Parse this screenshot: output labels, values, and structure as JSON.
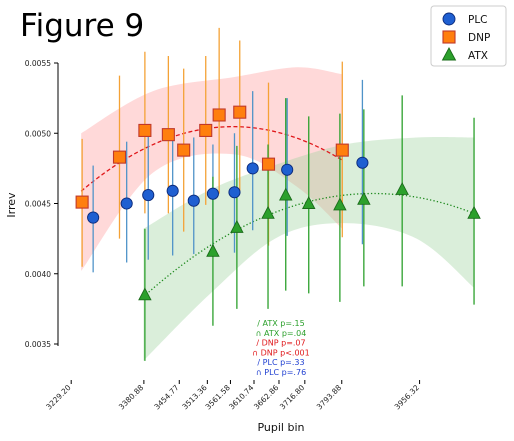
{
  "figure_title": "Figure 9",
  "chart_data": {
    "type": "scatter",
    "title": "",
    "xlabel": "Pupil bin",
    "ylabel": "Irrev",
    "x_tick_labels": [
      "3229.20",
      "3380.88",
      "3454.77",
      "3513.36",
      "3561.58",
      "3610.74",
      "3662.86",
      "3716.80",
      "3793.88",
      "3956.32"
    ],
    "y_ticks": [
      "0.0035",
      "0.0040",
      "0.0045",
      "0.0050",
      "0.0055"
    ],
    "ylim": [
      0.00345,
      0.00565
    ],
    "grid": false,
    "legend_position": "top-right",
    "legend_entries": [
      "PLC",
      "DNP",
      "ATX"
    ],
    "series": [
      {
        "name": "PLC",
        "marker": "circle",
        "color": "#1f5fd1",
        "error_color": "#4f93c8",
        "band": false,
        "fit": false,
        "points": [
          {
            "x": 3275,
            "y": 0.0044,
            "lo": 0.00401,
            "hi": 0.00477
          },
          {
            "x": 3345,
            "y": 0.0045,
            "lo": 0.00408,
            "hi": 0.00494
          },
          {
            "x": 3390,
            "y": 0.00456,
            "lo": 0.0041,
            "hi": 0.005
          },
          {
            "x": 3441,
            "y": 0.00459,
            "lo": 0.00413,
            "hi": 0.00502
          },
          {
            "x": 3485,
            "y": 0.00452,
            "lo": 0.00414,
            "hi": 0.00497
          },
          {
            "x": 3525,
            "y": 0.00457,
            "lo": 0.0042,
            "hi": 0.00492
          },
          {
            "x": 3570,
            "y": 0.00458,
            "lo": 0.00415,
            "hi": 0.005
          },
          {
            "x": 3608,
            "y": 0.00475,
            "lo": 0.00431,
            "hi": 0.0053
          },
          {
            "x": 3680,
            "y": 0.00474,
            "lo": 0.00427,
            "hi": 0.00525
          },
          {
            "x": 3837,
            "y": 0.00479,
            "lo": 0.00421,
            "hi": 0.00538
          }
        ]
      },
      {
        "name": "DNP",
        "marker": "square",
        "color": "#ff7f0e",
        "error_color": "#f4a236",
        "band_color": "#ff9a9a",
        "fit_color": "#e0181b",
        "fit_style": "dashed",
        "fit_curve": {
          "x_start": 3250,
          "x_end": 3795
        },
        "band_upper": [
          [
            3250,
            0.005
          ],
          [
            3400,
            0.0053
          ],
          [
            3570,
            0.0054
          ],
          [
            3700,
            0.00547
          ],
          [
            3795,
            0.00542
          ]
        ],
        "band_lower": [
          [
            3250,
            0.00402
          ],
          [
            3400,
            0.00472
          ],
          [
            3570,
            0.00485
          ],
          [
            3700,
            0.00462
          ],
          [
            3795,
            0.00432
          ]
        ],
        "points": [
          {
            "x": 3252,
            "y": 0.00451,
            "lo": 0.00405,
            "hi": 0.00496
          },
          {
            "x": 3330,
            "y": 0.00483,
            "lo": 0.00425,
            "hi": 0.00541
          },
          {
            "x": 3383,
            "y": 0.00502,
            "lo": 0.00443,
            "hi": 0.00558
          },
          {
            "x": 3432,
            "y": 0.00499,
            "lo": 0.00443,
            "hi": 0.00555
          },
          {
            "x": 3464,
            "y": 0.00488,
            "lo": 0.0043,
            "hi": 0.00546
          },
          {
            "x": 3510,
            "y": 0.00502,
            "lo": 0.00449,
            "hi": 0.00555
          },
          {
            "x": 3538,
            "y": 0.00513,
            "lo": 0.00457,
            "hi": 0.00575
          },
          {
            "x": 3581,
            "y": 0.00515,
            "lo": 0.00459,
            "hi": 0.00566
          },
          {
            "x": 3641,
            "y": 0.00478,
            "lo": 0.0042,
            "hi": 0.00536
          },
          {
            "x": 3795,
            "y": 0.00488,
            "lo": 0.00426,
            "hi": 0.00551
          }
        ]
      },
      {
        "name": "ATX",
        "marker": "triangle",
        "color": "#2ca02c",
        "error_color": "#2ca02c",
        "band_color": "#9fd39f",
        "fit_color": "#1f8a1f",
        "fit_style": "dotted",
        "fit_curve": {
          "x_start": 3380,
          "x_end": 4070
        },
        "band_upper": [
          [
            3380,
            0.00432
          ],
          [
            3520,
            0.0046
          ],
          [
            3660,
            0.00478
          ],
          [
            3800,
            0.00492
          ],
          [
            3950,
            0.00497
          ],
          [
            4070,
            0.00497
          ]
        ],
        "band_lower": [
          [
            3380,
            0.00338
          ],
          [
            3520,
            0.00386
          ],
          [
            3660,
            0.00426
          ],
          [
            3800,
            0.00436
          ],
          [
            3950,
            0.00425
          ],
          [
            4070,
            0.0039
          ]
        ],
        "points": [
          {
            "x": 3383,
            "y": 0.00385,
            "lo": 0.00338,
            "hi": 0.00432
          },
          {
            "x": 3525,
            "y": 0.00416,
            "lo": 0.00363,
            "hi": 0.00469
          },
          {
            "x": 3575,
            "y": 0.00433,
            "lo": 0.00375,
            "hi": 0.00491
          },
          {
            "x": 3640,
            "y": 0.00443,
            "lo": 0.00375,
            "hi": 0.00492
          },
          {
            "x": 3677,
            "y": 0.00456,
            "lo": 0.00388,
            "hi": 0.00525
          },
          {
            "x": 3725,
            "y": 0.0045,
            "lo": 0.00386,
            "hi": 0.00512
          },
          {
            "x": 3790,
            "y": 0.00449,
            "lo": 0.0038,
            "hi": 0.00514
          },
          {
            "x": 3840,
            "y": 0.00453,
            "lo": 0.00391,
            "hi": 0.00517
          },
          {
            "x": 3920,
            "y": 0.0046,
            "lo": 0.00391,
            "hi": 0.00527
          },
          {
            "x": 4070,
            "y": 0.00443,
            "lo": 0.00378,
            "hi": 0.00511
          }
        ]
      }
    ],
    "annotations": [
      {
        "text": "/ ATX p=.15",
        "color": "#2ca02c"
      },
      {
        "text": "∩ ATX p=.04",
        "color": "#2ca02c"
      },
      {
        "text": "/ DNP p=.07",
        "color": "#e0181b"
      },
      {
        "text": "∩ DNP p<.001",
        "color": "#e0181b"
      },
      {
        "text": "/ PLC p=.33",
        "color": "#1f3fd1"
      },
      {
        "text": "∩ PLC p=.76",
        "color": "#1f3fd1"
      }
    ]
  }
}
